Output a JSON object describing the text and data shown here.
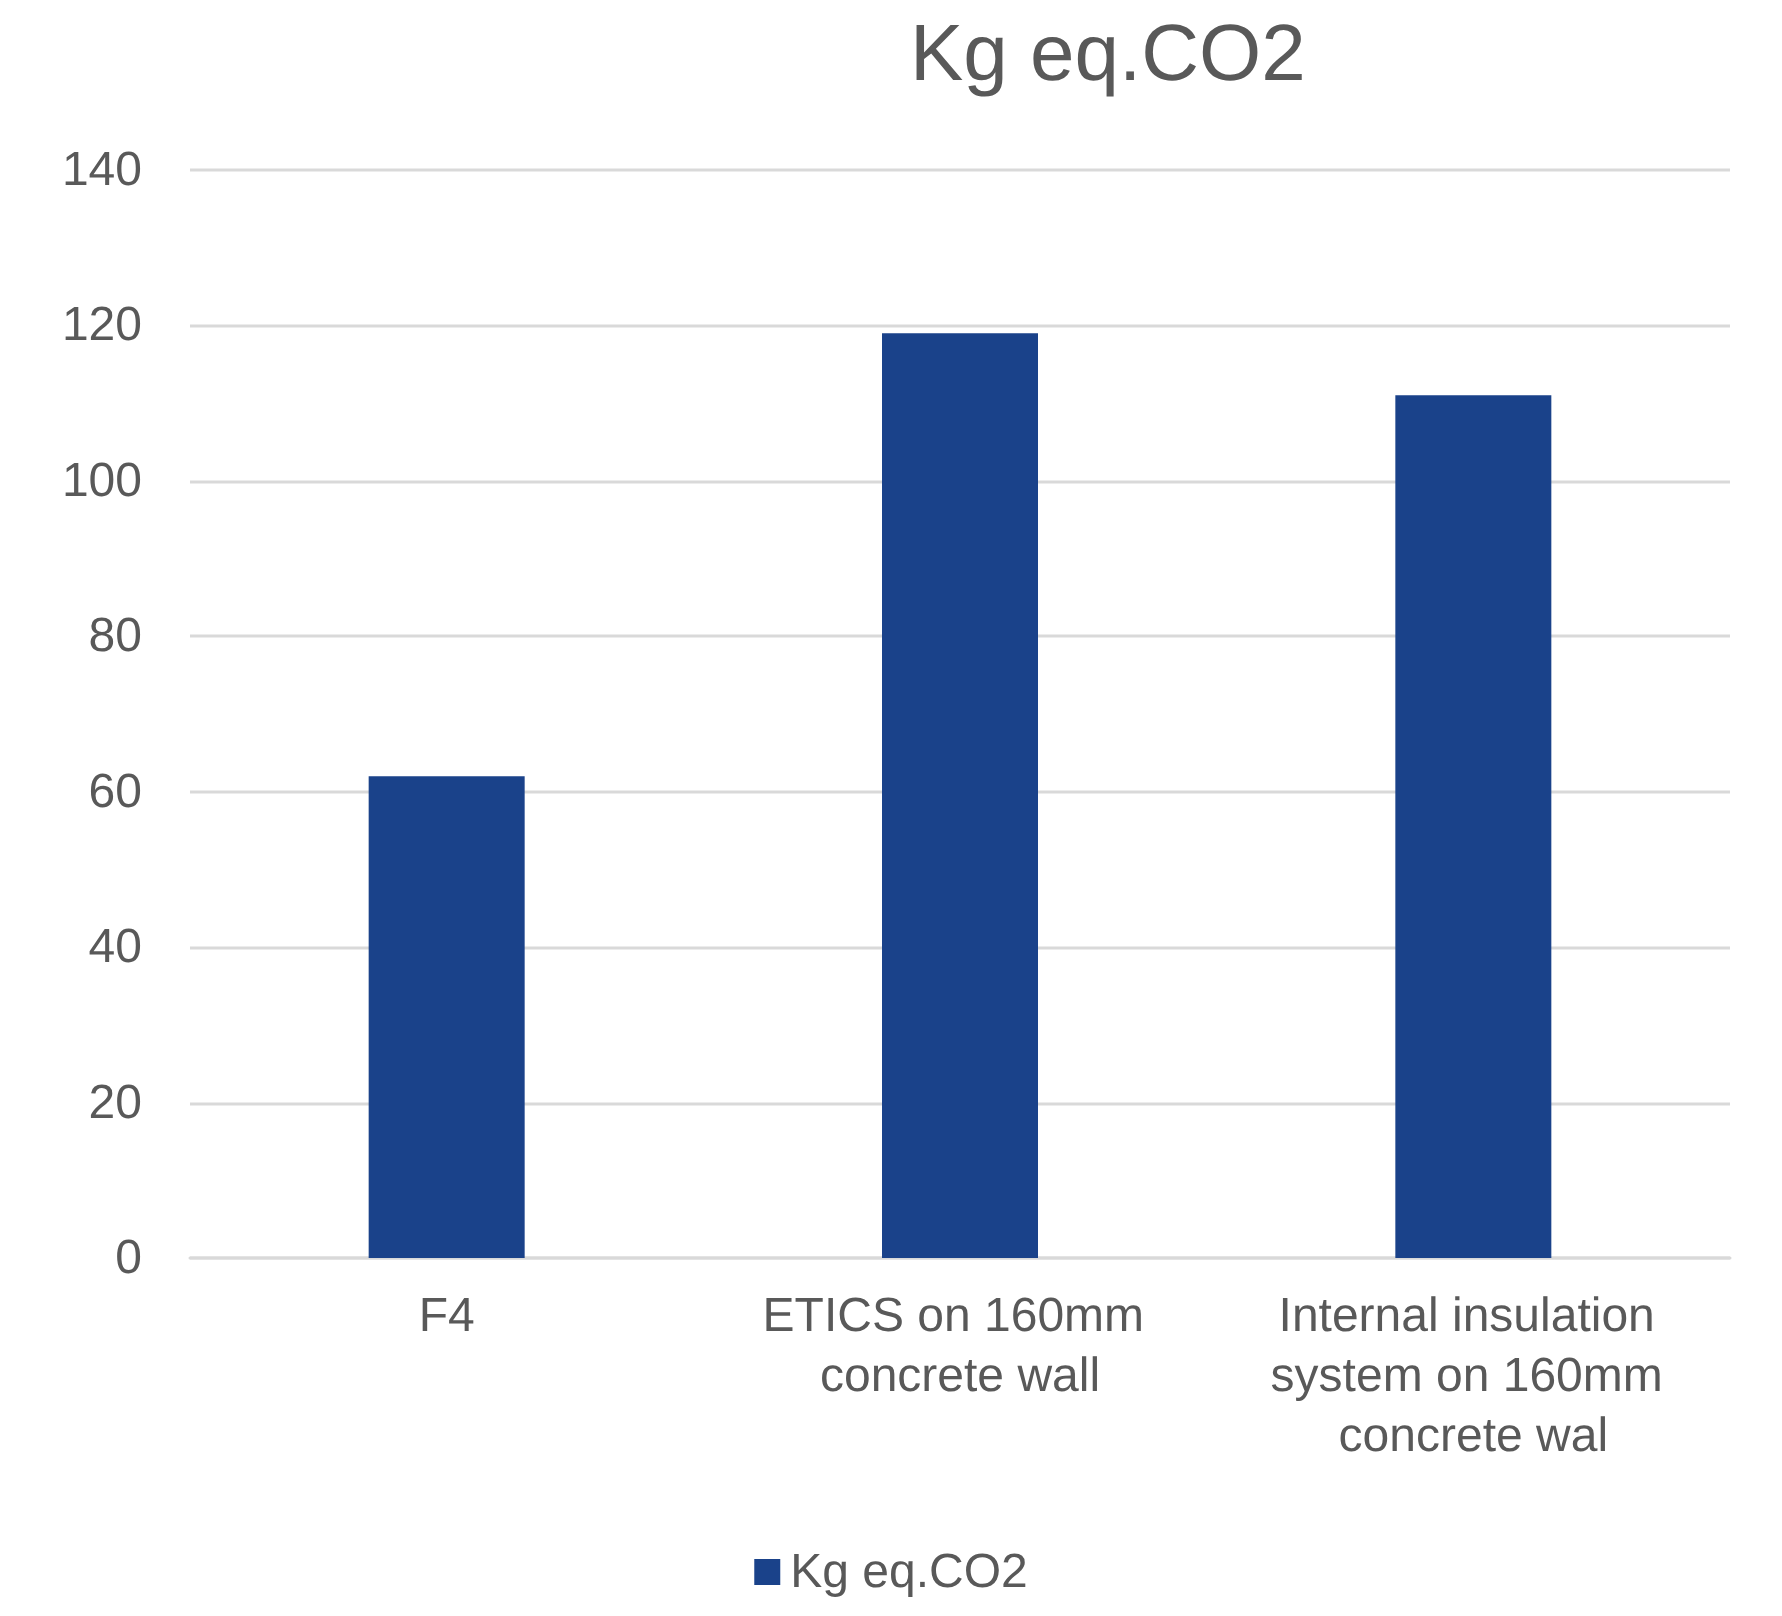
{
  "chart_data": {
    "type": "bar",
    "title": "Kg eq.CO2",
    "categories": [
      "F4",
      "ETICS on 160mm concrete wall",
      "Internal insulation system on 160mm concrete wal"
    ],
    "series": [
      {
        "name": "Kg eq.CO2",
        "color": "#1a428a",
        "values": [
          62,
          119,
          111
        ]
      }
    ],
    "ylim": [
      0,
      140
    ],
    "yticks": [
      0,
      20,
      40,
      60,
      80,
      100,
      120,
      140
    ],
    "grid": "y",
    "legend": "bottom"
  }
}
